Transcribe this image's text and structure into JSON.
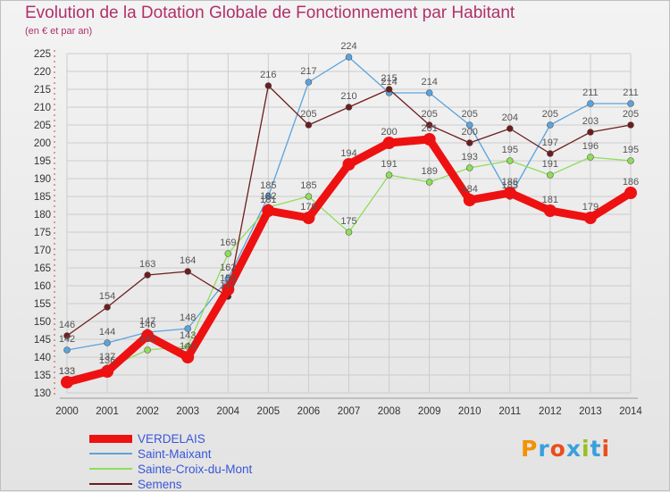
{
  "title": "Evolution de la Dotation Globale de Fonctionnement par Habitant",
  "subtitle": "(en € et par an)",
  "logo": "Proxiti",
  "colors": {
    "title": "#b0306a",
    "grid": "#cccccc",
    "axis": "#333333",
    "value_label": "#555555",
    "logo": [
      "#f39200",
      "#3aa0dc",
      "#e94e1b",
      "#3aa0dc",
      "#95c11f",
      "#3aa0dc",
      "#e94e1b"
    ]
  },
  "chart_data": {
    "type": "line",
    "title": "Evolution de la Dotation Globale de Fonctionnement par Habitant",
    "subtitle": "(en € et par an)",
    "x": [
      "2000",
      "2001",
      "2002",
      "2003",
      "2004",
      "2005",
      "2006",
      "2007",
      "2008",
      "2009",
      "2010",
      "2011",
      "2012",
      "2013",
      "2014"
    ],
    "ylim": [
      130,
      225
    ],
    "yticks": [
      130,
      135,
      140,
      145,
      150,
      155,
      160,
      165,
      170,
      175,
      180,
      185,
      190,
      195,
      200,
      205,
      210,
      215,
      220,
      225
    ],
    "grid": true,
    "legend_position": "bottom-left",
    "series": [
      {
        "name": "VERDELAIS",
        "color": "#ee1111",
        "width": 9,
        "marker": 7,
        "values": [
          133,
          136,
          146,
          140,
          159,
          181,
          179,
          194,
          200,
          201,
          184,
          186,
          181,
          179,
          186
        ]
      },
      {
        "name": "Saint-Maixant",
        "color": "#5ba3dd",
        "width": 1.3,
        "marker": 3.5,
        "values": [
          142,
          144,
          147,
          148,
          162,
          185,
          217,
          224,
          214,
          214,
          205,
          185,
          205,
          211,
          211
        ]
      },
      {
        "name": "Sainte-Croix-du-Mont",
        "color": "#90dd5a",
        "width": 1.3,
        "marker": 3.5,
        "values": [
          133,
          137,
          142,
          143,
          169,
          182,
          185,
          175,
          191,
          189,
          193,
          195,
          191,
          196,
          195
        ]
      },
      {
        "name": "Semens",
        "color": "#6e1c1c",
        "width": 1.3,
        "marker": 3.5,
        "values": [
          146,
          154,
          163,
          164,
          157,
          216,
          205,
          210,
          215,
          205,
          200,
          204,
          197,
          203,
          205
        ]
      }
    ]
  }
}
